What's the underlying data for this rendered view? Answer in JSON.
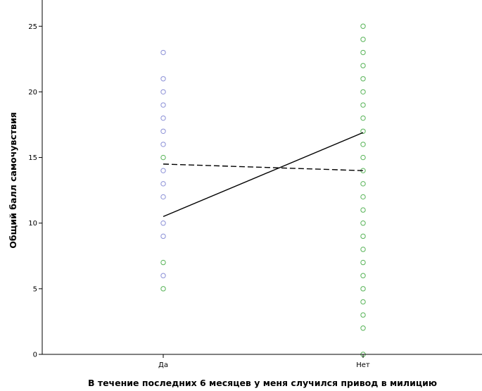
{
  "chart_data": {
    "type": "scatter",
    "title": "",
    "xlabel": "В течение последних 6 месяцев у меня случился привод в милицию",
    "ylabel": "Общий балл самочувствия",
    "categories": [
      "Да",
      "Нет"
    ],
    "ylim": [
      0,
      27
    ],
    "yticks": [
      0,
      5,
      10,
      15,
      20,
      25
    ],
    "grid": false,
    "legend": "none",
    "colors": {
      "blue": "#8a8fd6",
      "green": "#56b356",
      "solid_line": "#000000",
      "dashed_line": "#000000",
      "axis": "#000000"
    },
    "series": [
      {
        "color_key": "blue",
        "points": [
          {
            "x": "Да",
            "y": 23
          },
          {
            "x": "Да",
            "y": 21
          },
          {
            "x": "Да",
            "y": 20
          },
          {
            "x": "Да",
            "y": 19
          },
          {
            "x": "Да",
            "y": 18
          },
          {
            "x": "Да",
            "y": 17
          },
          {
            "x": "Да",
            "y": 16
          },
          {
            "x": "Да",
            "y": 14
          },
          {
            "x": "Да",
            "y": 13
          },
          {
            "x": "Да",
            "y": 12
          },
          {
            "x": "Да",
            "y": 10
          },
          {
            "x": "Да",
            "y": 9
          },
          {
            "x": "Да",
            "y": 6
          }
        ]
      },
      {
        "color_key": "green",
        "points": [
          {
            "x": "Да",
            "y": 15
          },
          {
            "x": "Да",
            "y": 7
          },
          {
            "x": "Да",
            "y": 5
          },
          {
            "x": "Нет",
            "y": 25
          },
          {
            "x": "Нет",
            "y": 24
          },
          {
            "x": "Нет",
            "y": 23
          },
          {
            "x": "Нет",
            "y": 22
          },
          {
            "x": "Нет",
            "y": 21
          },
          {
            "x": "Нет",
            "y": 20
          },
          {
            "x": "Нет",
            "y": 19
          },
          {
            "x": "Нет",
            "y": 18
          },
          {
            "x": "Нет",
            "y": 17
          },
          {
            "x": "Нет",
            "y": 16
          },
          {
            "x": "Нет",
            "y": 15
          },
          {
            "x": "Нет",
            "y": 14
          },
          {
            "x": "Нет",
            "y": 13
          },
          {
            "x": "Нет",
            "y": 12
          },
          {
            "x": "Нет",
            "y": 11
          },
          {
            "x": "Нет",
            "y": 10
          },
          {
            "x": "Нет",
            "y": 9
          },
          {
            "x": "Нет",
            "y": 8
          },
          {
            "x": "Нет",
            "y": 7
          },
          {
            "x": "Нет",
            "y": 6
          },
          {
            "x": "Нет",
            "y": 5
          },
          {
            "x": "Нет",
            "y": 4
          },
          {
            "x": "Нет",
            "y": 3
          },
          {
            "x": "Нет",
            "y": 2
          },
          {
            "x": "Нет",
            "y": 0
          }
        ]
      }
    ],
    "fit_lines": [
      {
        "style": "solid",
        "values": [
          10.5,
          16.9
        ]
      },
      {
        "style": "dashed",
        "values": [
          14.5,
          14.0
        ]
      }
    ]
  }
}
